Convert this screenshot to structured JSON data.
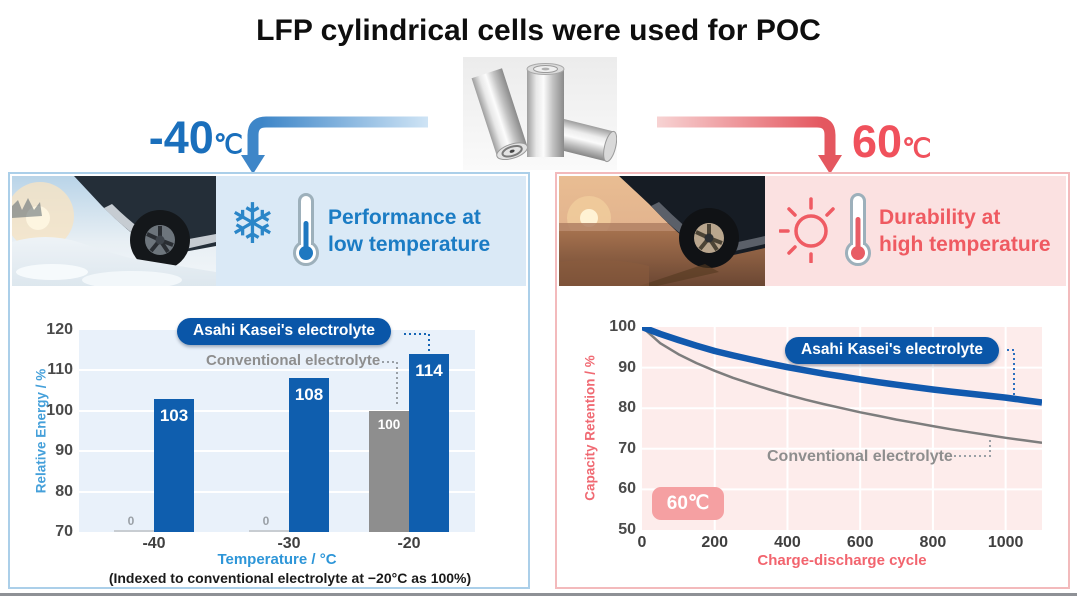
{
  "page": {
    "title": "LFP cylindrical cells were used for POC"
  },
  "flow": {
    "left_temp": "-40",
    "left_temp_unit": "℃",
    "right_temp": "60",
    "right_temp_unit": "℃"
  },
  "left_panel": {
    "heading_line1": "Performance at",
    "heading_line2": "low temperature",
    "icons": [
      "snowflake-icon",
      "thermometer-cold-icon"
    ]
  },
  "right_panel": {
    "heading_line1": "Durability at",
    "heading_line2": "high temperature",
    "icons": [
      "sun-icon",
      "thermometer-hot-icon"
    ]
  },
  "colors": {
    "blue_accent": "#0f5eae",
    "blue_heading": "#1b7cc4",
    "red_heading": "#ef5a61",
    "gray_series": "#8e8e8e",
    "blue_panel_bg": "#dae9f6",
    "pink_panel_bg": "#fbe1e1",
    "blue_plot_bg": "#e9f1fa",
    "pink_plot_bg": "#fdeceb",
    "badge_pink": "#f5a0a2"
  },
  "chart_data": [
    {
      "type": "bar",
      "categories": [
        "-40",
        "-30",
        "-20"
      ],
      "series": [
        {
          "name": "Conventional electrolyte",
          "color": "#8e8e8e",
          "values": [
            0,
            0,
            100
          ]
        },
        {
          "name": "Asahi Kasei's electrolyte",
          "color": "#0f5eae",
          "values": [
            103,
            108,
            114
          ]
        }
      ],
      "xlabel": "Temperature / °C",
      "ylabel": "Relative Energy / %",
      "ylim": [
        70,
        120
      ],
      "yticks": [
        70,
        80,
        90,
        100,
        110,
        120
      ],
      "grid": "horizontal-white",
      "annotations": {
        "asahi_label": "Asahi Kasei's electrolyte",
        "conventional_label": "Conventional electrolyte"
      },
      "note": "(Indexed to conventional electrolyte at −20°C as 100%)"
    },
    {
      "type": "line",
      "xlabel": "Charge-discharge cycle",
      "ylabel": "Capacity Retention / %",
      "xlim": [
        0,
        1100
      ],
      "ylim": [
        50,
        100
      ],
      "xticks": [
        0,
        200,
        400,
        600,
        800,
        1000
      ],
      "yticks": [
        50,
        60,
        70,
        80,
        90,
        100
      ],
      "grid": "both-white",
      "temperature_badge": "60℃",
      "annotations": {
        "asahi_label": "Asahi Kasei's electrolyte",
        "conventional_label": "Conventional electrolyte"
      },
      "series": [
        {
          "name": "Asahi Kasei's electrolyte",
          "color": "#1159ae",
          "width": 6.5,
          "points": [
            [
              0,
              100
            ],
            [
              50,
              98.3
            ],
            [
              100,
              96.8
            ],
            [
              150,
              95.4
            ],
            [
              200,
              94.1
            ],
            [
              250,
              93.0
            ],
            [
              300,
              92.0
            ],
            [
              350,
              91.0
            ],
            [
              400,
              90.1
            ],
            [
              450,
              89.3
            ],
            [
              500,
              88.5
            ],
            [
              550,
              87.8
            ],
            [
              600,
              87.1
            ],
            [
              650,
              86.4
            ],
            [
              700,
              85.8
            ],
            [
              750,
              85.2
            ],
            [
              800,
              84.6
            ],
            [
              850,
              84.1
            ],
            [
              900,
              83.6
            ],
            [
              950,
              83.1
            ],
            [
              1000,
              82.6
            ],
            [
              1050,
              82.0
            ],
            [
              1100,
              81.4
            ]
          ]
        },
        {
          "name": "Conventional electrolyte",
          "color": "#7d7d7d",
          "width": 2.5,
          "points": [
            [
              0,
              100
            ],
            [
              50,
              96.0
            ],
            [
              100,
              93.3
            ],
            [
              150,
              91.1
            ],
            [
              200,
              89.2
            ],
            [
              250,
              87.5
            ],
            [
              300,
              86.0
            ],
            [
              350,
              84.6
            ],
            [
              400,
              83.3
            ],
            [
              450,
              82.1
            ],
            [
              500,
              81.0
            ],
            [
              550,
              80.0
            ],
            [
              600,
              79.0
            ],
            [
              650,
              78.1
            ],
            [
              700,
              77.2
            ],
            [
              750,
              76.4
            ],
            [
              800,
              75.6
            ],
            [
              850,
              74.8
            ],
            [
              900,
              74.1
            ],
            [
              950,
              73.4
            ],
            [
              1000,
              72.7
            ],
            [
              1050,
              72.1
            ],
            [
              1100,
              71.5
            ]
          ]
        }
      ]
    }
  ]
}
